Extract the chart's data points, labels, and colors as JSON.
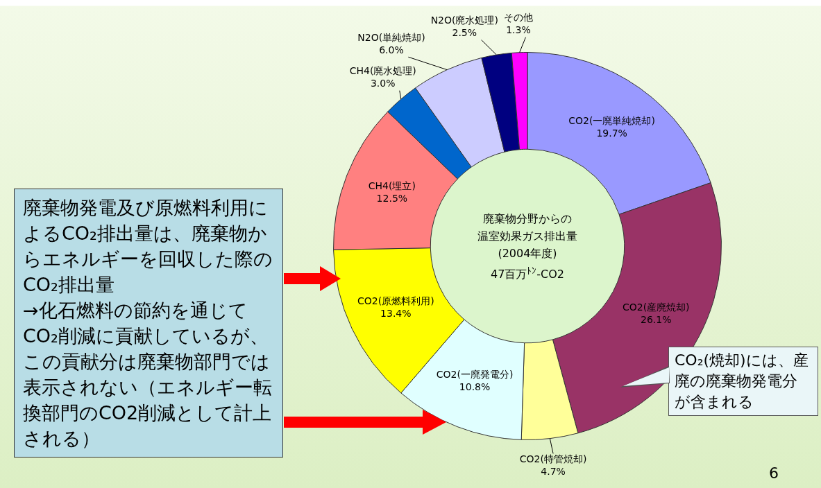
{
  "chart_data": {
    "type": "donut",
    "title": "廃棄物分野からの温室効果ガス排出量",
    "subtitle": "(2004年度)",
    "categories": [
      "CO2(一廃単純焼却)",
      "CO2(産廃焼却)",
      "CO2(特管焼却)",
      "CO2(一廃発電分)",
      "CO2(原燃料利用)",
      "CH4(埋立)",
      "CH4(廃水処理)",
      "N2O(単純焼却)",
      "N2O(廃水処理)",
      "その他"
    ],
    "values": [
      19.7,
      26.1,
      4.7,
      10.8,
      13.4,
      12.5,
      3.0,
      6.0,
      2.5,
      1.3
    ],
    "value_labels": [
      "19.7%",
      "26.1%",
      "4.7%",
      "10.8%",
      "13.4%",
      "12.5%",
      "3.0%",
      "6.0%",
      "2.5%",
      "1.3%"
    ],
    "colors": [
      "#9999ff",
      "#993366",
      "#ffff99",
      "#e0ffff",
      "#ffff00",
      "#ff8080",
      "#0066cc",
      "#ccccff",
      "#000080",
      "#ff00ff"
    ],
    "legend": false,
    "annotations": [
      "47百万$^{ﾄﾝ}$-CO2",
      "廃棄物発電及び原燃料利用によるCO₂排出量は、廃棄物からエネルギーを回収した際のCO₂排出量\n→化石燃料の節約を通じてCO₂削減に貢献しているが、この貢献分は廃棄物部門では表示されない（エネルギー転換部門のCO2削減として計上される）",
      "CO₂(焼却)には、産廃の廃棄物発電分が含まれる",
      "6"
    ]
  }
}
